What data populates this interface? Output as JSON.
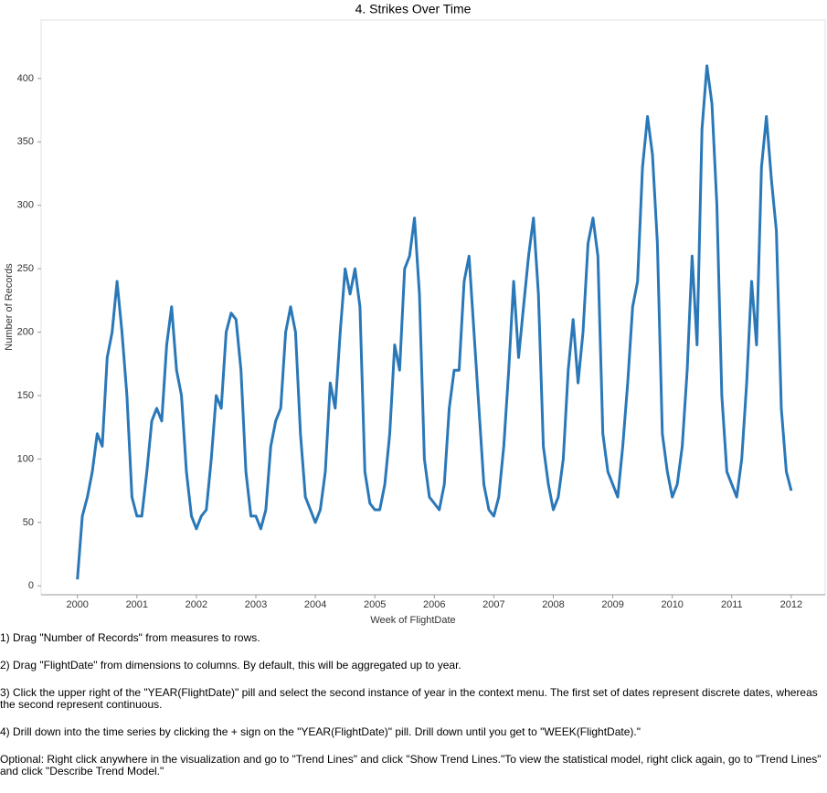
{
  "chart_data": {
    "type": "line",
    "title": "4. Strikes Over Time",
    "x_label": "Week of FlightDate",
    "y_label": "Number of Records",
    "xlim": [
      1999.39,
      2012.57
    ],
    "ylim": [
      -7,
      446
    ],
    "xticks": [
      2000,
      2001,
      2002,
      2003,
      2004,
      2005,
      2006,
      2007,
      2008,
      2009,
      2010,
      2011,
      2012
    ],
    "yticks": [
      0,
      50,
      100,
      150,
      200,
      250,
      300,
      350,
      400
    ],
    "grid": false,
    "series": [
      {
        "name": "Number of Records",
        "color": "#2a78b8",
        "x": [
          2000,
          2000.083,
          2000.167,
          2000.25,
          2000.333,
          2000.417,
          2000.5,
          2000.583,
          2000.667,
          2000.75,
          2000.833,
          2000.917,
          2001,
          2001.083,
          2001.167,
          2001.25,
          2001.333,
          2001.417,
          2001.5,
          2001.583,
          2001.667,
          2001.75,
          2001.833,
          2001.917,
          2002,
          2002.083,
          2002.167,
          2002.25,
          2002.333,
          2002.417,
          2002.5,
          2002.583,
          2002.667,
          2002.75,
          2002.833,
          2002.917,
          2003,
          2003.083,
          2003.167,
          2003.25,
          2003.333,
          2003.417,
          2003.5,
          2003.583,
          2003.667,
          2003.75,
          2003.833,
          2003.917,
          2004,
          2004.083,
          2004.167,
          2004.25,
          2004.333,
          2004.417,
          2004.5,
          2004.583,
          2004.667,
          2004.75,
          2004.833,
          2004.917,
          2005,
          2005.083,
          2005.167,
          2005.25,
          2005.333,
          2005.417,
          2005.5,
          2005.583,
          2005.667,
          2005.75,
          2005.833,
          2005.917,
          2006,
          2006.083,
          2006.167,
          2006.25,
          2006.333,
          2006.417,
          2006.5,
          2006.583,
          2006.667,
          2006.75,
          2006.833,
          2006.917,
          2007,
          2007.083,
          2007.167,
          2007.25,
          2007.333,
          2007.417,
          2007.5,
          2007.583,
          2007.667,
          2007.75,
          2007.833,
          2007.917,
          2008,
          2008.083,
          2008.167,
          2008.25,
          2008.333,
          2008.417,
          2008.5,
          2008.583,
          2008.667,
          2008.75,
          2008.833,
          2008.917,
          2009,
          2009.083,
          2009.167,
          2009.25,
          2009.333,
          2009.417,
          2009.5,
          2009.583,
          2009.667,
          2009.75,
          2009.833,
          2009.917,
          2010,
          2010.083,
          2010.167,
          2010.25,
          2010.333,
          2010.417,
          2010.5,
          2010.583,
          2010.667,
          2010.75,
          2010.833,
          2010.917,
          2011,
          2011.083,
          2011.167,
          2011.25,
          2011.333,
          2011.417,
          2011.5,
          2011.583,
          2011.667,
          2011.75,
          2011.833,
          2011.917,
          2012
        ],
        "values": [
          5,
          55,
          70,
          90,
          120,
          110,
          180,
          200,
          240,
          200,
          150,
          70,
          55,
          55,
          90,
          130,
          140,
          130,
          190,
          220,
          170,
          150,
          90,
          55,
          45,
          55,
          60,
          100,
          150,
          140,
          200,
          215,
          210,
          170,
          90,
          55,
          55,
          45,
          60,
          110,
          130,
          140,
          200,
          220,
          200,
          120,
          70,
          60,
          50,
          60,
          90,
          160,
          140,
          200,
          250,
          230,
          250,
          220,
          90,
          65,
          60,
          60,
          80,
          120,
          190,
          170,
          250,
          260,
          290,
          230,
          100,
          70,
          65,
          60,
          80,
          140,
          170,
          170,
          240,
          260,
          200,
          140,
          80,
          60,
          55,
          70,
          110,
          170,
          240,
          180,
          220,
          260,
          290,
          230,
          110,
          80,
          60,
          70,
          100,
          170,
          210,
          160,
          200,
          270,
          290,
          260,
          120,
          90,
          80,
          70,
          110,
          160,
          220,
          240,
          330,
          370,
          340,
          270,
          120,
          90,
          70,
          80,
          110,
          170,
          260,
          190,
          360,
          410,
          380,
          300,
          150,
          90,
          80,
          70,
          100,
          160,
          240,
          190,
          330,
          370,
          320,
          280,
          140,
          90,
          75
        ]
      }
    ]
  },
  "instructions": [
    "1) Drag \"Number of Records\" from measures to rows.",
    "2) Drag \"FlightDate\" from dimensions to columns. By default, this will be aggregated up to year.",
    "3) Click the upper right of the \"YEAR(FlightDate)\" pill and select the second instance of year in the context menu. The first set of dates represent discrete dates, whereas the second represent continuous.",
    "4) Drill down into the time series by clicking the + sign on the \"YEAR(FlightDate)\" pill. Drill down until you get to \"WEEK(FlightDate).\"",
    "Optional: Right click anywhere in the visualization and go to \"Trend Lines\" and click \"Show Trend Lines.\"To view the statistical model, right click again, go to \"Trend Lines\" and click \"Describe Trend Model.\""
  ]
}
